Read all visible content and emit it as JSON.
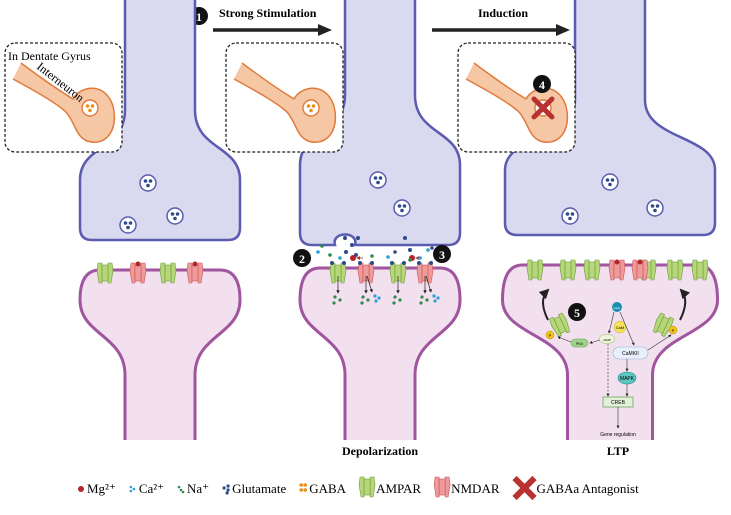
{
  "steps": {
    "step1": {
      "num": "1",
      "label": "Strong Stimulation"
    },
    "induction": "Induction",
    "step2": "2",
    "step3": "3",
    "step4": "4",
    "step5": "5"
  },
  "inset": {
    "region": "In Dentate Gyrus",
    "cell": "Interneuron"
  },
  "panel_labels": {
    "middle": "Depolarization",
    "right": "LTP"
  },
  "pathway": {
    "ca": "Ca2+",
    "cam": "CaM",
    "camp": "cAMP",
    "pka": "PKA",
    "camkii": "CaMKII",
    "mapk": "MAPK",
    "creb": "CREB",
    "gene": "Gene regulation",
    "p": "P"
  },
  "legend": [
    {
      "icon": "mg-icon",
      "label": "Mg²⁺"
    },
    {
      "icon": "ca-icon",
      "label": "Ca²⁺"
    },
    {
      "icon": "na-icon",
      "label": "Na⁺"
    },
    {
      "icon": "glutamate-icon",
      "label": "Glutamate"
    },
    {
      "icon": "gaba-icon",
      "label": "GABA"
    },
    {
      "icon": "ampar-icon",
      "label": "AMPAR"
    },
    {
      "icon": "nmdar-icon",
      "label": "NMDAR"
    },
    {
      "icon": "antagonist-icon",
      "label": "GABAa Antagonist"
    }
  ],
  "colors": {
    "presynaptic": "#d9d9f0",
    "presynaptic_edge": "#5b5bb0",
    "postsynaptic": "#f2e0ef",
    "postsynaptic_edge": "#a0559e",
    "interneuron": "#f5c7a4",
    "interneuron_edge": "#e07a3a",
    "ampar": "#b5d77a",
    "nmdar": "#ee9a9a",
    "mg": "#b3262a",
    "ca": "#2aa0d6",
    "na": "#2f8a4a",
    "glutamate": "#2c4a8c",
    "gaba": "#e8901c",
    "antagonist": "#b83232"
  }
}
